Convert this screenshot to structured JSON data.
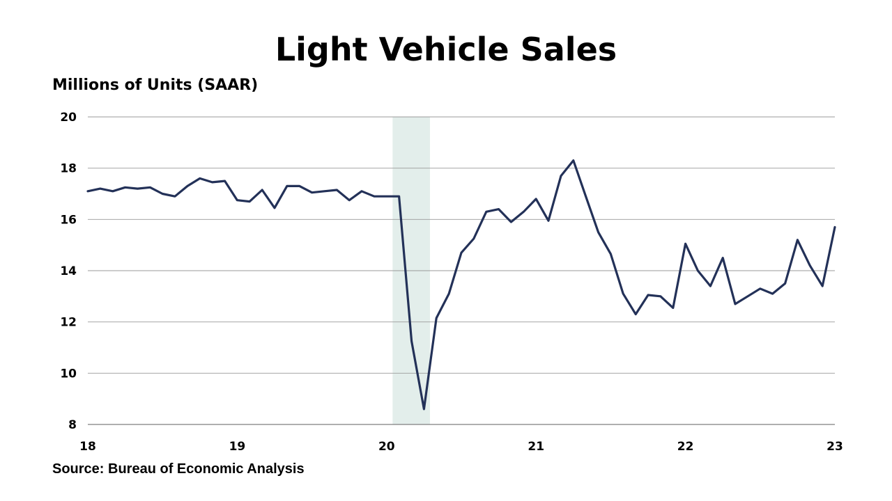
{
  "chart_data": {
    "type": "line",
    "title": "Light Vehicle Sales",
    "ylabel": "Millions of Units (SAAR)",
    "source": "Source: Bureau of Economic Analysis",
    "x_ticks": [
      {
        "x": 2018,
        "label": "18"
      },
      {
        "x": 2019,
        "label": "19"
      },
      {
        "x": 2020,
        "label": "20"
      },
      {
        "x": 2021,
        "label": "21"
      },
      {
        "x": 2022,
        "label": "22"
      },
      {
        "x": 2023,
        "label": "23"
      }
    ],
    "y_ticks": [
      8,
      10,
      12,
      14,
      16,
      18,
      20
    ],
    "xlim": [
      2018,
      2023
    ],
    "ylim": [
      8,
      20
    ],
    "grid": "horizontal",
    "recession_band": {
      "start": 2020.04,
      "end": 2020.29,
      "color": "#e3eeeb"
    },
    "series": [
      {
        "color": "#233158",
        "x": [
          2018.0,
          2018.083,
          2018.167,
          2018.25,
          2018.333,
          2018.417,
          2018.5,
          2018.583,
          2018.667,
          2018.75,
          2018.833,
          2018.917,
          2019.0,
          2019.083,
          2019.167,
          2019.25,
          2019.333,
          2019.417,
          2019.5,
          2019.583,
          2019.667,
          2019.75,
          2019.833,
          2019.917,
          2020.0,
          2020.083,
          2020.167,
          2020.25,
          2020.333,
          2020.417,
          2020.5,
          2020.583,
          2020.667,
          2020.75,
          2020.833,
          2020.917,
          2021.0,
          2021.083,
          2021.167,
          2021.25,
          2021.333,
          2021.417,
          2021.5,
          2021.583,
          2021.667,
          2021.75,
          2021.833,
          2021.917,
          2022.0,
          2022.083,
          2022.167,
          2022.25,
          2022.333,
          2022.417,
          2022.5,
          2022.583,
          2022.667,
          2022.75,
          2022.833,
          2022.917,
          2023.0
        ],
        "y": [
          17.1,
          17.2,
          17.1,
          17.25,
          17.2,
          17.25,
          17.0,
          16.9,
          17.3,
          17.6,
          17.45,
          17.5,
          16.75,
          16.7,
          17.15,
          16.45,
          17.3,
          17.3,
          17.05,
          17.1,
          17.15,
          16.75,
          17.1,
          16.9,
          16.9,
          16.9,
          11.25,
          8.6,
          12.15,
          13.1,
          14.7,
          15.25,
          16.3,
          16.4,
          15.9,
          16.3,
          16.8,
          15.95,
          17.7,
          18.3,
          16.9,
          15.5,
          14.65,
          13.1,
          12.3,
          13.05,
          13.0,
          12.55,
          15.05,
          14.0,
          13.4,
          14.5,
          12.7,
          13.0,
          13.3,
          13.1,
          13.5,
          15.2,
          14.2,
          13.4,
          15.7
        ]
      }
    ]
  }
}
